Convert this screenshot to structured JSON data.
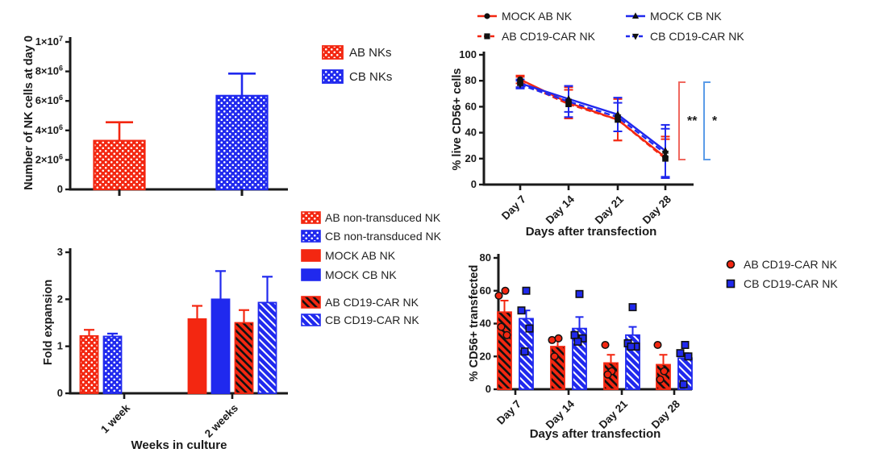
{
  "figure": {
    "description": "NK cell expansion and CD19-CAR transfection four-panel figure",
    "background": "#ffffff"
  },
  "colors": {
    "red": "#f32711",
    "blue": "#2029ee",
    "black": "#1a1a1a",
    "sig_red": "#f0685f",
    "sig_blue": "#5b9ce8",
    "marker_black": "#111111"
  },
  "chart_data": [
    {
      "id": "nk_cells_day0",
      "type": "bar",
      "ylabel": "Number of NK cells at day 0",
      "xlabel": "",
      "ylim": [
        0,
        10000000
      ],
      "ytick_labels": [
        "0",
        "2×10^6",
        "4×10^6",
        "6×10^6",
        "8×10^6",
        "1×10^7"
      ],
      "ytick_values": [
        0,
        2000000,
        4000000,
        6000000,
        8000000,
        10000000
      ],
      "categories": [
        "AB NKs",
        "CB NKs"
      ],
      "bars": [
        {
          "label": "AB NKs",
          "value": 3300000,
          "error": 1250000,
          "color": "red",
          "pattern": "checker"
        },
        {
          "label": "CB NKs",
          "value": 6350000,
          "error": 1500000,
          "color": "blue",
          "pattern": "checker"
        }
      ],
      "legend": [
        {
          "label": "AB NKs",
          "color": "red",
          "pattern": "checker"
        },
        {
          "label": "CB NKs",
          "color": "blue",
          "pattern": "checker"
        }
      ]
    },
    {
      "id": "live_cd56",
      "type": "line",
      "ylabel": "% live CD56+ cells",
      "xlabel": "Days after transfection",
      "ylim": [
        0,
        100
      ],
      "ytick_values": [
        0,
        20,
        40,
        60,
        80,
        100
      ],
      "categories": [
        "Day 7",
        "Day 14",
        "Day 21",
        "Day 28"
      ],
      "series": [
        {
          "name": "MOCK AB NK",
          "color": "red",
          "dashed": false,
          "marker": "circle",
          "values": [
            81,
            63,
            50,
            21
          ],
          "errors": [
            3,
            12,
            16,
            16
          ]
        },
        {
          "name": "AB CD19-CAR NK",
          "color": "red",
          "dashed": true,
          "marker": "square",
          "values": [
            79,
            62,
            50,
            20
          ],
          "errors": [
            4,
            11,
            16,
            15
          ]
        },
        {
          "name": "MOCK CB NK",
          "color": "blue",
          "dashed": false,
          "marker": "triangle-up",
          "values": [
            78,
            66,
            54,
            26
          ],
          "errors": [
            3,
            10,
            13,
            20
          ]
        },
        {
          "name": "CB CD19-CAR NK",
          "color": "blue",
          "dashed": true,
          "marker": "triangle-down",
          "values": [
            77,
            64,
            52,
            24
          ],
          "errors": [
            3,
            12,
            11,
            19
          ]
        }
      ],
      "significance": [
        {
          "label": "**",
          "bracket_color": "sig_red"
        },
        {
          "label": "*",
          "bracket_color": "sig_blue"
        }
      ]
    },
    {
      "id": "fold_expansion",
      "type": "grouped_bar",
      "ylabel": "Fold expansion",
      "xlabel": "Weeks in culture",
      "ylim": [
        0,
        3
      ],
      "ytick_values": [
        0,
        1,
        2,
        3
      ],
      "categories": [
        "1 week",
        "2 weeks"
      ],
      "groups": [
        {
          "category": "1 week",
          "bars": [
            {
              "series": "AB non-transduced NK",
              "value": 1.22,
              "error": 0.13,
              "color": "red",
              "pattern": "checker"
            },
            {
              "series": "CB non-transduced NK",
              "value": 1.21,
              "error": 0.06,
              "color": "blue",
              "pattern": "checker"
            }
          ]
        },
        {
          "category": "2 weeks",
          "bars": [
            {
              "series": "MOCK AB NK",
              "value": 1.58,
              "error": 0.28,
              "color": "red",
              "pattern": "solid"
            },
            {
              "series": "MOCK CB NK",
              "value": 2.0,
              "error": 0.6,
              "color": "blue",
              "pattern": "solid"
            },
            {
              "series": "AB CD19-CAR NK",
              "value": 1.5,
              "error": 0.27,
              "color": "red",
              "pattern": "hatch"
            },
            {
              "series": "CB CD19-CAR NK",
              "value": 1.93,
              "error": 0.55,
              "color": "blue",
              "pattern": "hatch"
            }
          ]
        }
      ],
      "legend": [
        {
          "label": "AB non-transduced NK",
          "color": "red",
          "pattern": "checker"
        },
        {
          "label": "CB non-transduced NK",
          "color": "blue",
          "pattern": "checker"
        },
        {
          "label": "MOCK AB NK",
          "color": "red",
          "pattern": "solid"
        },
        {
          "label": "MOCK CB NK",
          "color": "blue",
          "pattern": "solid"
        },
        {
          "label": "AB CD19-CAR NK",
          "color": "red",
          "pattern": "hatch"
        },
        {
          "label": "CB CD19-CAR NK",
          "color": "blue",
          "pattern": "hatch"
        }
      ]
    },
    {
      "id": "cd56_transfected",
      "type": "bar_scatter",
      "ylabel": "% CD56+ transfected",
      "xlabel": "Days after transfection",
      "ylim": [
        0,
        80
      ],
      "ytick_values": [
        0,
        20,
        40,
        60,
        80
      ],
      "categories": [
        "Day 7",
        "Day 14",
        "Day 21",
        "Day 28"
      ],
      "series": [
        {
          "name": "AB CD19-CAR NK",
          "color": "red",
          "pattern": "hatch",
          "marker": "circle",
          "values": [
            47,
            26,
            16,
            15
          ],
          "errors": [
            7,
            4,
            5,
            6
          ],
          "points": [
            [
              57,
              60,
              38,
              33
            ],
            [
              30,
              31,
              20
            ],
            [
              27,
              11,
              9
            ],
            [
              27,
              11,
              6
            ]
          ]
        },
        {
          "name": "CB CD19-CAR NK",
          "color": "blue",
          "pattern": "hatch",
          "marker": "square",
          "values": [
            43,
            37,
            33,
            19
          ],
          "errors": [
            5,
            7,
            5,
            3
          ],
          "points": [
            [
              60,
              48,
              37,
              23
            ],
            [
              58,
              33,
              31,
              29
            ],
            [
              50,
              28,
              26,
              26
            ],
            [
              27,
              22,
              20,
              3
            ]
          ]
        }
      ],
      "legend": [
        {
          "label": "AB CD19-CAR NK",
          "color": "red",
          "marker": "circle"
        },
        {
          "label": "CB CD19-CAR NK",
          "color": "blue",
          "marker": "square"
        }
      ]
    }
  ]
}
